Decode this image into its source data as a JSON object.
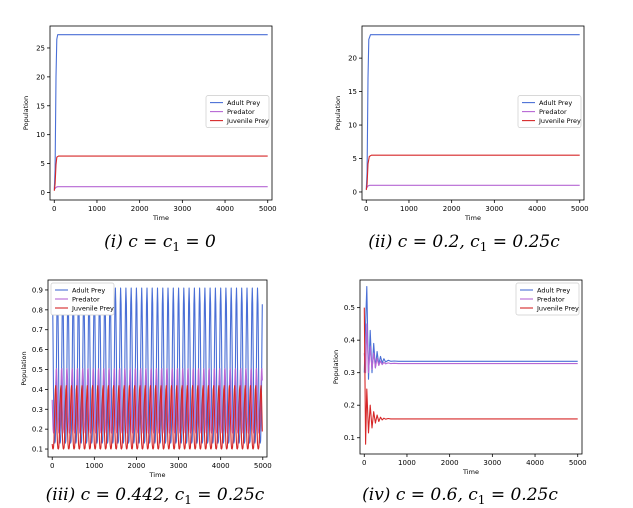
{
  "chart_data": [
    {
      "type": "line",
      "caption": {
        "roman": "(i)",
        "text": "c = c",
        "sub": "1",
        "tail": " = 0"
      },
      "xlabel": "Time",
      "ylabel": "Population",
      "xlim": [
        -100,
        5100
      ],
      "ylim": [
        -1.3,
        28.8
      ],
      "xticks": [
        0,
        1000,
        2000,
        3000,
        4000,
        5000
      ],
      "yticks": [
        0,
        5,
        10,
        15,
        20,
        25
      ],
      "legend": "center-right",
      "series": [
        {
          "name": "Adult Prey",
          "color": "#4a6fd6",
          "x": [
            0,
            20,
            40,
            60,
            80,
            5000
          ],
          "values": [
            0.5,
            4,
            20,
            26.5,
            27.3,
            27.3
          ]
        },
        {
          "name": "Predator",
          "color": "#b667d4",
          "x": [
            0,
            40,
            80,
            5000
          ],
          "values": [
            0.5,
            0.9,
            1.0,
            1.0
          ]
        },
        {
          "name": "Juvenile Prey",
          "color": "#d62728",
          "x": [
            0,
            20,
            40,
            60,
            100,
            5000
          ],
          "values": [
            0.3,
            1.5,
            4.8,
            6.1,
            6.3,
            6.3
          ]
        }
      ]
    },
    {
      "type": "line",
      "caption": {
        "roman": "(ii)",
        "text": "c = 0.2,  c",
        "sub": "1",
        "tail": " = 0.25c"
      },
      "xlabel": "Time",
      "ylabel": "Population",
      "xlim": [
        -100,
        5100
      ],
      "ylim": [
        -1.2,
        24.8
      ],
      "xticks": [
        0,
        1000,
        2000,
        3000,
        4000,
        5000
      ],
      "yticks": [
        0,
        5,
        10,
        15,
        20
      ],
      "legend": "center-right",
      "series": [
        {
          "name": "Adult Prey",
          "color": "#4a6fd6",
          "x": [
            0,
            20,
            40,
            60,
            100,
            5000
          ],
          "values": [
            0.4,
            3,
            17,
            22.8,
            23.5,
            23.5
          ]
        },
        {
          "name": "Predator",
          "color": "#b667d4",
          "x": [
            0,
            40,
            80,
            5000
          ],
          "values": [
            0.5,
            0.9,
            1.0,
            1.0
          ]
        },
        {
          "name": "Juvenile Prey",
          "color": "#d62728",
          "x": [
            0,
            20,
            40,
            70,
            120,
            5000
          ],
          "values": [
            0.3,
            1.2,
            4.2,
            5.3,
            5.5,
            5.5
          ]
        }
      ]
    },
    {
      "type": "line",
      "caption": {
        "roman": "(iii)",
        "text": "c = 0.442,  c",
        "sub": "1",
        "tail": " = 0.25c"
      },
      "xlabel": "Time",
      "ylabel": "Population",
      "xlim": [
        -100,
        5100
      ],
      "ylim": [
        0.06,
        0.95
      ],
      "xticks": [
        0,
        1000,
        2000,
        3000,
        4000,
        5000
      ],
      "yticks": [
        0.1,
        0.2,
        0.3,
        0.4,
        0.5,
        0.6,
        0.7,
        0.8,
        0.9
      ],
      "legend": "top-left",
      "oscillation": {
        "period": 125,
        "cycles": 40
      },
      "series": [
        {
          "name": "Adult Prey",
          "color": "#4a6fd6",
          "min": 0.13,
          "max": 0.91,
          "phase": 0.0
        },
        {
          "name": "Predator",
          "color": "#b667d4",
          "min": 0.18,
          "max": 0.51,
          "phase": 0.2
        },
        {
          "name": "Juvenile Prey",
          "color": "#d62728",
          "min": 0.1,
          "max": 0.42,
          "phase": 0.35
        }
      ]
    },
    {
      "type": "line",
      "caption": {
        "roman": "(iv)",
        "text": "c = 0.6,  c",
        "sub": "1",
        "tail": " = 0.25c"
      },
      "xlabel": "Time",
      "ylabel": "Population",
      "xlim": [
        -100,
        5100
      ],
      "ylim": [
        0.05,
        0.585
      ],
      "xticks": [
        0,
        1000,
        2000,
        3000,
        4000,
        5000
      ],
      "yticks": [
        0.1,
        0.2,
        0.3,
        0.4,
        0.5
      ],
      "legend": "top-right",
      "series": [
        {
          "name": "Adult Prey",
          "color": "#4a6fd6",
          "x": [
            0,
            30,
            60,
            100,
            140,
            180,
            220,
            260,
            300,
            340,
            380,
            420,
            460,
            500,
            560,
            620,
            700,
            800,
            5000
          ],
          "values": [
            0.3,
            0.45,
            0.565,
            0.28,
            0.43,
            0.3,
            0.39,
            0.315,
            0.365,
            0.325,
            0.35,
            0.33,
            0.343,
            0.333,
            0.338,
            0.335,
            0.336,
            0.335,
            0.335
          ]
        },
        {
          "name": "Predator",
          "color": "#b667d4",
          "x": [
            0,
            30,
            60,
            100,
            140,
            180,
            220,
            260,
            300,
            340,
            380,
            420,
            460,
            500,
            560,
            620,
            700,
            800,
            5000
          ],
          "values": [
            0.36,
            0.3,
            0.45,
            0.3,
            0.38,
            0.31,
            0.36,
            0.315,
            0.345,
            0.322,
            0.336,
            0.325,
            0.332,
            0.327,
            0.33,
            0.328,
            0.329,
            0.328,
            0.328
          ]
        },
        {
          "name": "Juvenile Prey",
          "color": "#d62728",
          "x": [
            0,
            30,
            60,
            100,
            140,
            180,
            220,
            260,
            300,
            340,
            380,
            420,
            460,
            500,
            560,
            620,
            700,
            800,
            5000
          ],
          "values": [
            0.5,
            0.08,
            0.25,
            0.115,
            0.2,
            0.13,
            0.18,
            0.145,
            0.17,
            0.15,
            0.163,
            0.155,
            0.16,
            0.157,
            0.159,
            0.158,
            0.158,
            0.158,
            0.158
          ]
        }
      ]
    }
  ]
}
